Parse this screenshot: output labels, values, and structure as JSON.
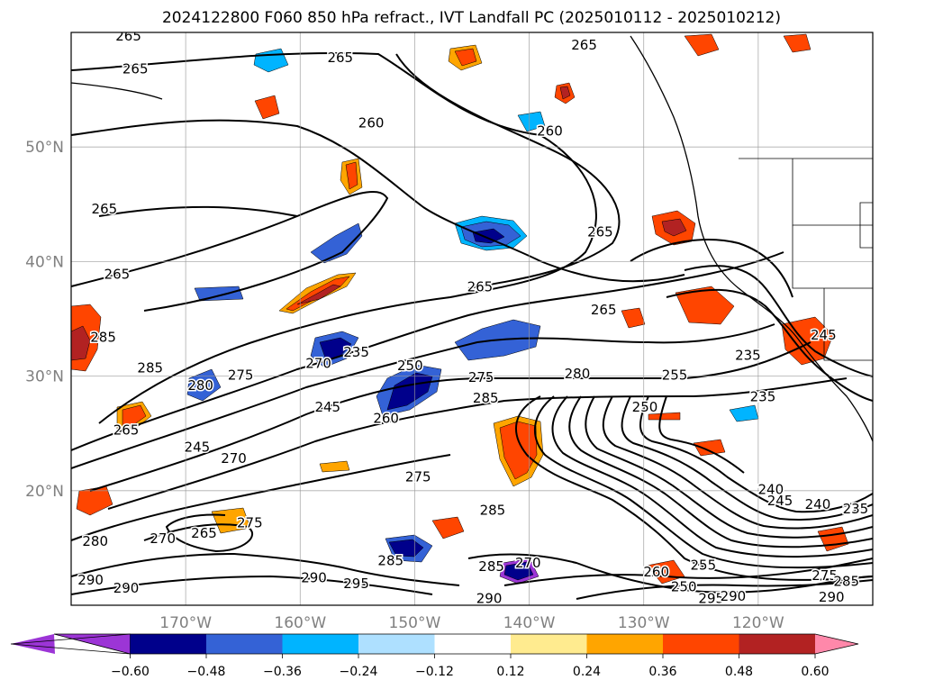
{
  "title": "2024122800 F060 850 hPa refract., IVT Landfall PC (2025010112 - 2025010212)",
  "lat_axis": {
    "ticks": [
      {
        "label": "50°N",
        "lat": 50
      },
      {
        "label": "40°N",
        "lat": 40
      },
      {
        "label": "30°N",
        "lat": 30
      },
      {
        "label": "20°N",
        "lat": 20
      }
    ]
  },
  "lon_axis": {
    "ticks": [
      {
        "label": "170°W",
        "lon": -170
      },
      {
        "label": "160°W",
        "lon": -160
      },
      {
        "label": "150°W",
        "lon": -150
      },
      {
        "label": "140°W",
        "lon": -140
      },
      {
        "label": "130°W",
        "lon": -130
      },
      {
        "label": "120°W",
        "lon": -120
      }
    ]
  },
  "map_extent": {
    "lon_min": -180,
    "lon_max": -110,
    "lat_min": 10,
    "lat_max": 60
  },
  "colorbar": {
    "colors": [
      "#9c35d6",
      "#00008b",
      "#3462d6",
      "#00b4ff",
      "#aee0ff",
      "#ffffff",
      "#ffeb8f",
      "#ffa500",
      "#ff4500",
      "#b22222",
      "#ff88aa"
    ],
    "ticks": [
      "−0.60",
      "−0.48",
      "−0.36",
      "−0.24",
      "−0.12",
      "0.12",
      "0.24",
      "0.36",
      "0.48",
      "0.60"
    ]
  },
  "contour_labels": [
    {
      "text": "265",
      "lon": -175,
      "lat": 59.7
    },
    {
      "text": "265",
      "lon": -174.4,
      "lat": 56.8
    },
    {
      "text": "265",
      "lon": -156.5,
      "lat": 57.8
    },
    {
      "text": "265",
      "lon": -135.2,
      "lat": 58.9
    },
    {
      "text": "260",
      "lon": -153.8,
      "lat": 52.1
    },
    {
      "text": "260",
      "lon": -138.2,
      "lat": 51.4
    },
    {
      "text": "265",
      "lon": -177.1,
      "lat": 44.6
    },
    {
      "text": "265",
      "lon": -176,
      "lat": 38.9
    },
    {
      "text": "265",
      "lon": -133.8,
      "lat": 42.6
    },
    {
      "text": "265",
      "lon": -144.3,
      "lat": 37.8
    },
    {
      "text": "265",
      "lon": -133.5,
      "lat": 35.8
    },
    {
      "text": "285",
      "lon": -177.2,
      "lat": 33.4
    },
    {
      "text": "285",
      "lon": -173.1,
      "lat": 30.7
    },
    {
      "text": "275",
      "lon": -165.2,
      "lat": 30.1
    },
    {
      "text": "280",
      "lon": -168.7,
      "lat": 29.2
    },
    {
      "text": "270",
      "lon": -158.4,
      "lat": 31.1
    },
    {
      "text": "235",
      "lon": -155.1,
      "lat": 32.1
    },
    {
      "text": "250",
      "lon": -150.4,
      "lat": 30.9
    },
    {
      "text": "245",
      "lon": -157.6,
      "lat": 27.3
    },
    {
      "text": "260",
      "lon": -152.5,
      "lat": 26.3
    },
    {
      "text": "275",
      "lon": -144.2,
      "lat": 29.9
    },
    {
      "text": "280",
      "lon": -135.8,
      "lat": 30.2
    },
    {
      "text": "285",
      "lon": -143.8,
      "lat": 28.1
    },
    {
      "text": "255",
      "lon": -127.3,
      "lat": 30.1
    },
    {
      "text": "250",
      "lon": -129.9,
      "lat": 27.3
    },
    {
      "text": "235",
      "lon": -119.6,
      "lat": 28.2
    },
    {
      "text": "235",
      "lon": -120.9,
      "lat": 31.8
    },
    {
      "text": "265",
      "lon": -175.2,
      "lat": 25.3
    },
    {
      "text": "245",
      "lon": -169,
      "lat": 23.8
    },
    {
      "text": "270",
      "lon": -165.8,
      "lat": 22.8
    },
    {
      "text": "275",
      "lon": -149.7,
      "lat": 21.2
    },
    {
      "text": "285",
      "lon": -143.2,
      "lat": 18.3
    },
    {
      "text": "240",
      "lon": -118.9,
      "lat": 20.1
    },
    {
      "text": "245",
      "lon": -118.1,
      "lat": 19.1
    },
    {
      "text": "240",
      "lon": -114.8,
      "lat": 18.8
    },
    {
      "text": "235",
      "lon": -111.5,
      "lat": 18.4
    },
    {
      "text": "280",
      "lon": -177.9,
      "lat": 15.6
    },
    {
      "text": "270",
      "lon": -172,
      "lat": 15.8
    },
    {
      "text": "265",
      "lon": -168.4,
      "lat": 16.3
    },
    {
      "text": "275",
      "lon": -164.4,
      "lat": 17.2
    },
    {
      "text": "290",
      "lon": -178.3,
      "lat": 12.2
    },
    {
      "text": "290",
      "lon": -175.2,
      "lat": 11.5
    },
    {
      "text": "290",
      "lon": -158.8,
      "lat": 12.4
    },
    {
      "text": "295",
      "lon": -155.1,
      "lat": 11.9
    },
    {
      "text": "285",
      "lon": -152.1,
      "lat": 13.9
    },
    {
      "text": "285",
      "lon": -143.3,
      "lat": 13.4
    },
    {
      "text": "270",
      "lon": -140.1,
      "lat": 13.7
    },
    {
      "text": "290",
      "lon": -143.5,
      "lat": 10.6
    },
    {
      "text": "260",
      "lon": -128.9,
      "lat": 12.9
    },
    {
      "text": "255",
      "lon": -124.8,
      "lat": 13.5
    },
    {
      "text": "250",
      "lon": -126.5,
      "lat": 11.6
    },
    {
      "text": "295",
      "lon": -124.1,
      "lat": 10.6
    },
    {
      "text": "290",
      "lon": -122.2,
      "lat": 10.8
    },
    {
      "text": "275",
      "lon": -114.2,
      "lat": 12.6
    },
    {
      "text": "285",
      "lon": -112.3,
      "lat": 12.1
    },
    {
      "text": "290",
      "lon": -113.6,
      "lat": 10.7
    },
    {
      "text": "245",
      "lon": -114.3,
      "lat": 33.6
    }
  ]
}
